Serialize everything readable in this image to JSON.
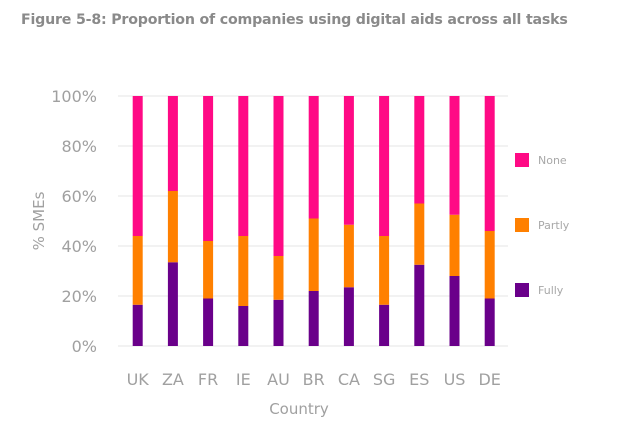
{
  "figure_title": "Figure 5-8: Proportion of companies using digital aids across all tasks",
  "chart_data": {
    "type": "bar",
    "stacked": true,
    "title": "Figure 5-8: Proportion of companies using digital aids across all tasks",
    "xlabel": "Country",
    "ylabel": "% SMEs",
    "ylim": [
      0,
      100
    ],
    "yticks": [
      0,
      20,
      40,
      60,
      80,
      100
    ],
    "ytick_labels": [
      "0%",
      "20%",
      "40%",
      "60%",
      "80%",
      "100%"
    ],
    "grid": true,
    "legend_position": "right",
    "categories": [
      "UK",
      "ZA",
      "FR",
      "IE",
      "AU",
      "BR",
      "CA",
      "SG",
      "ES",
      "US",
      "DE"
    ],
    "series": [
      {
        "name": "Fully",
        "color": "#6a008a",
        "values": [
          16.5,
          33.5,
          19,
          16,
          18.5,
          22,
          23.5,
          16.5,
          32.5,
          28,
          19
        ]
      },
      {
        "name": "Partly",
        "color": "#ff8000",
        "values": [
          27.5,
          28.5,
          23,
          28,
          17.5,
          29,
          25,
          27.5,
          24.5,
          24.5,
          27
        ]
      },
      {
        "name": "None",
        "color": "#ff0a85",
        "values": [
          56,
          38,
          58,
          56,
          64,
          49,
          51.5,
          56,
          43,
          47.5,
          54
        ]
      }
    ],
    "legend": [
      "None",
      "Partly",
      "Fully"
    ]
  }
}
